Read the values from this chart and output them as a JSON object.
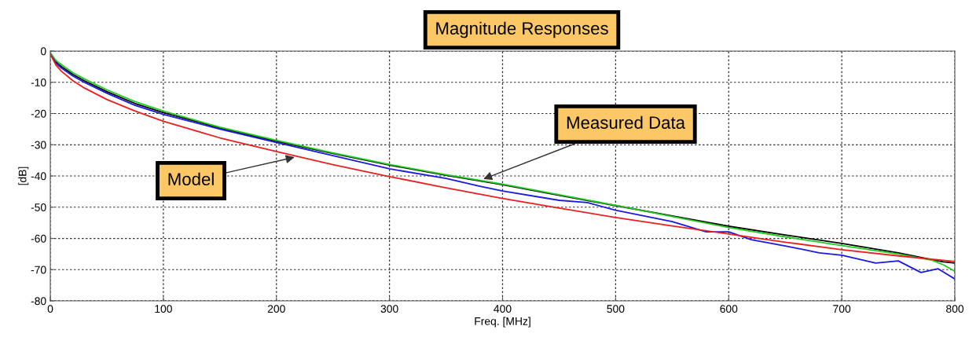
{
  "chart_data": {
    "type": "line",
    "title": "Magnitude Responses",
    "xlabel": "Freq. [MHz]",
    "ylabel": "[dB]",
    "xlim": [
      0,
      800
    ],
    "ylim": [
      -80,
      0
    ],
    "xticks": [
      0,
      100,
      200,
      300,
      400,
      500,
      600,
      700,
      800
    ],
    "yticks": [
      -80,
      -70,
      -60,
      -50,
      -40,
      -30,
      -20,
      -10,
      0
    ],
    "grid": true,
    "line_style": "solid",
    "marker": "none",
    "series": [
      {
        "color": "#000000",
        "x": [
          0,
          5,
          10,
          20,
          30,
          50,
          75,
          100,
          150,
          200,
          250,
          300,
          350,
          400,
          450,
          500,
          550,
          600,
          650,
          700,
          750,
          780,
          790,
          800
        ],
        "values": [
          -1,
          -3.5,
          -5,
          -7.5,
          -9.5,
          -13,
          -16.8,
          -19.7,
          -24.6,
          -28.9,
          -32.8,
          -36.5,
          -39.8,
          -42.8,
          -46.2,
          -49.5,
          -52.8,
          -56.1,
          -58.9,
          -61.6,
          -64.6,
          -66.8,
          -67.5,
          -67.9
        ]
      },
      {
        "color": "#22cc22",
        "x": [
          0,
          5,
          10,
          20,
          30,
          50,
          75,
          100,
          150,
          200,
          250,
          300,
          350,
          400,
          450,
          500,
          550,
          600,
          650,
          700,
          750,
          780,
          790,
          800
        ],
        "values": [
          -0.5,
          -3.0,
          -4.4,
          -6.9,
          -8.9,
          -12.4,
          -16.2,
          -19.2,
          -24.4,
          -28.6,
          -32.6,
          -36.3,
          -39.6,
          -42.6,
          -46.0,
          -49.4,
          -53.0,
          -56.5,
          -59.5,
          -62.3,
          -65.0,
          -67.0,
          -68.5,
          -70.5
        ]
      },
      {
        "color": "#1a1adf",
        "x": [
          0,
          5,
          10,
          20,
          30,
          50,
          75,
          100,
          150,
          200,
          250,
          300,
          350,
          380,
          400,
          450,
          475,
          500,
          550,
          580,
          600,
          620,
          650,
          680,
          700,
          730,
          750,
          770,
          785,
          800
        ],
        "values": [
          -1,
          -3.9,
          -5.5,
          -8.0,
          -10.0,
          -13.5,
          -17.4,
          -20.3,
          -25.0,
          -29.3,
          -33.5,
          -37.7,
          -40.8,
          -43.3,
          -44.8,
          -47.8,
          -48.5,
          -51,
          -54.6,
          -57.9,
          -57.9,
          -60.4,
          -62.4,
          -64.6,
          -65.4,
          -67.9,
          -67.2,
          -70.9,
          -69.7,
          -73
        ]
      },
      {
        "color": "#e8211f",
        "x": [
          0,
          5,
          10,
          20,
          30,
          50,
          75,
          100,
          150,
          200,
          250,
          300,
          350,
          400,
          450,
          500,
          550,
          600,
          650,
          700,
          750,
          800
        ],
        "values": [
          -1,
          -4.5,
          -6.5,
          -9.5,
          -11.8,
          -15.5,
          -19.2,
          -22.5,
          -27.8,
          -32.2,
          -36.4,
          -40.2,
          -43.8,
          -47.2,
          -50.3,
          -53.3,
          -56.0,
          -58.6,
          -61.2,
          -63.6,
          -65.6,
          -67.4
        ]
      }
    ],
    "annotations": [
      {
        "text": "Model",
        "x": 216,
        "y": -34
      },
      {
        "text": "Measured Data",
        "x": 383,
        "y": -41
      }
    ]
  }
}
